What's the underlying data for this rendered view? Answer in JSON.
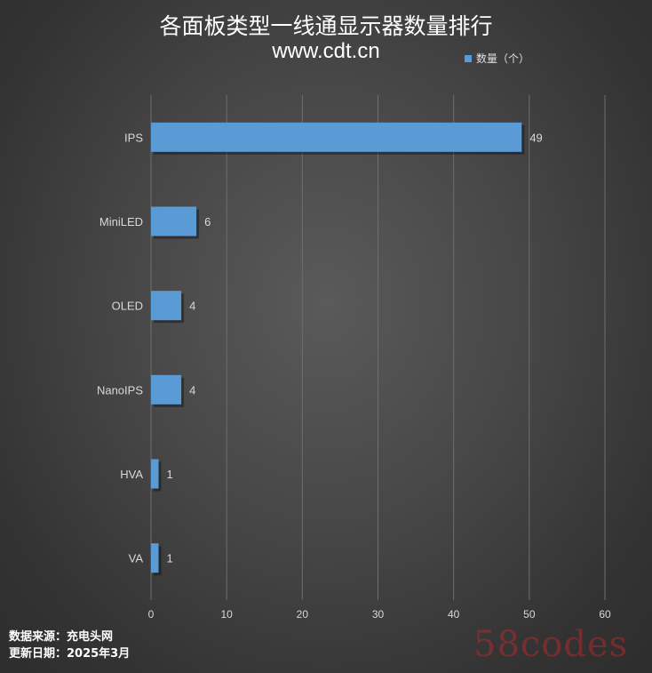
{
  "chart_data": {
    "type": "bar",
    "orientation": "horizontal",
    "title": "各面板类型一线通显示器数量排行",
    "subtitle": "www.cdt.cn",
    "categories": [
      "IPS",
      "MiniLED",
      "OLED",
      "NanoIPS",
      "HVA",
      "VA"
    ],
    "series": [
      {
        "name": "数量（个）",
        "values": [
          49,
          6,
          4,
          4,
          1,
          1
        ],
        "color": "#5b9bd5"
      }
    ],
    "xlim": [
      0,
      60
    ],
    "x_ticks": [
      "0",
      "10",
      "20",
      "30",
      "40",
      "50",
      "60"
    ],
    "grid": true,
    "legend": "top-right",
    "data_labels": true
  },
  "footer": {
    "source": "数据来源：充电头网",
    "updated": "更新日期：2025年3月"
  },
  "watermark": "58codes",
  "colors": {
    "bar": "#5b9bd5",
    "gridline": "#6e6e6e",
    "text": "#d9d9d9"
  }
}
